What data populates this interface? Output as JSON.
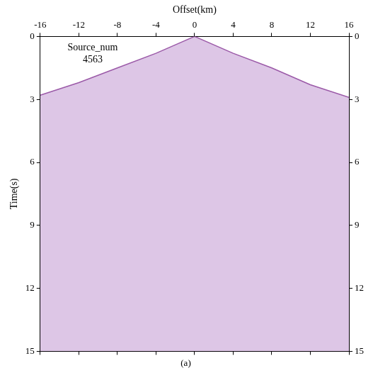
{
  "chart_data": {
    "type": "line",
    "subtitle": "(a)",
    "x_label": "Offset(km)",
    "y_label": "Time(s)",
    "annotations": [
      "Source_num",
      "4563"
    ],
    "x": [
      -16,
      -12,
      -8,
      -4,
      0,
      4,
      8,
      12,
      16
    ],
    "series": [
      {
        "color": "#9b5aa8",
        "values": [
          2.8,
          2.2,
          1.5,
          0.8,
          0,
          0.8,
          1.5,
          2.3,
          2.9
        ]
      }
    ],
    "xlim": [
      -16,
      16
    ],
    "xticks": [
      -16,
      -12,
      -8,
      -4,
      0,
      4,
      8,
      12,
      16
    ],
    "ylim": [
      0,
      15
    ],
    "yticks": [
      0,
      3,
      6,
      9,
      12,
      15
    ],
    "grid": false
  }
}
